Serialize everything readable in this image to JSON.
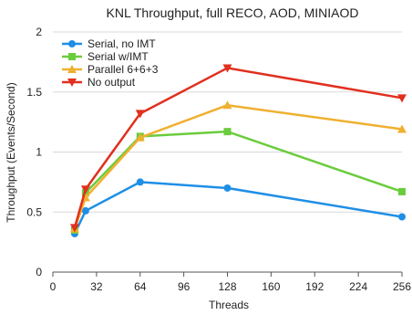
{
  "chart_data": {
    "type": "line",
    "title": "KNL Throughput, full RECO, AOD, MINIAOD",
    "xlabel": "Threads",
    "ylabel": "Throughput (Events/Second)",
    "xlim": [
      0,
      256
    ],
    "ylim": [
      0,
      2
    ],
    "xticks": [
      0,
      32,
      64,
      96,
      128,
      160,
      192,
      224,
      256
    ],
    "yticks": [
      0,
      0.5,
      1,
      1.5,
      2
    ],
    "ytick_labels": [
      "0",
      "0.5",
      "1",
      "1.5",
      "2"
    ],
    "grid": "horizontal",
    "legend_position": "top-left",
    "series": [
      {
        "name": "Serial, no IMT",
        "color": "#1f8fe5",
        "marker": "circle",
        "x": [
          16,
          24,
          64,
          128,
          256
        ],
        "y": [
          0.32,
          0.51,
          0.75,
          0.7,
          0.46
        ]
      },
      {
        "name": "Serial w/IMT",
        "color": "#6acc3c",
        "marker": "square",
        "x": [
          16,
          24,
          64,
          128,
          256
        ],
        "y": [
          0.35,
          0.66,
          1.13,
          1.17,
          0.67
        ]
      },
      {
        "name": "Parallel 6+6+3",
        "color": "#f0b030",
        "marker": "triangle-up",
        "x": [
          16,
          24,
          64,
          128,
          256
        ],
        "y": [
          0.36,
          0.62,
          1.12,
          1.39,
          1.19
        ]
      },
      {
        "name": "No output",
        "color": "#e0301e",
        "marker": "triangle-down",
        "x": [
          16,
          24,
          64,
          128,
          256
        ],
        "y": [
          0.37,
          0.69,
          1.32,
          1.7,
          1.45
        ]
      }
    ]
  }
}
